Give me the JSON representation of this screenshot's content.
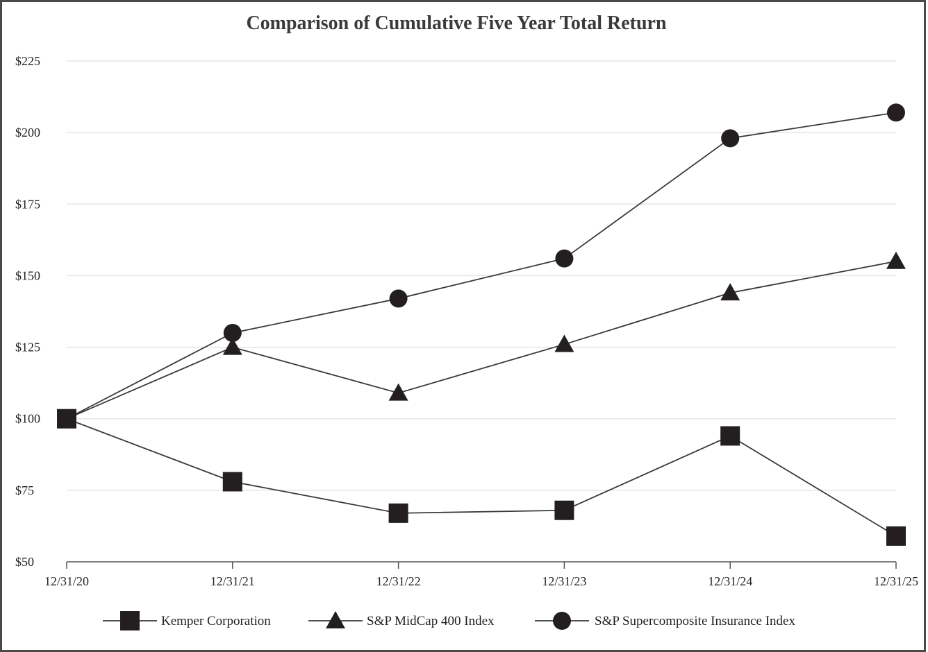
{
  "chart_data": {
    "type": "line",
    "title": "Comparison of Cumulative Five Year Total Return",
    "xlabel": "",
    "ylabel": "",
    "x": [
      "12/31/20",
      "12/31/21",
      "12/31/22",
      "12/31/23",
      "12/31/24",
      "12/31/25"
    ],
    "ylim": [
      50,
      225
    ],
    "yticks": [
      50,
      75,
      100,
      125,
      150,
      175,
      200,
      225
    ],
    "ytick_labels": [
      "$50",
      "$75",
      "$100",
      "$125",
      "$150",
      "$175",
      "$200",
      "$225"
    ],
    "grid": true,
    "legend_position": "bottom",
    "series": [
      {
        "name": "Kemper Corporation",
        "marker": "square",
        "values": [
          100,
          78,
          67,
          68,
          94,
          59
        ]
      },
      {
        "name": "S&P MidCap 400 Index",
        "marker": "triangle",
        "values": [
          100,
          125,
          109,
          126,
          144,
          155
        ]
      },
      {
        "name": "S&P Supercomposite Insurance Index",
        "marker": "circle",
        "values": [
          100,
          130,
          142,
          156,
          198,
          207
        ]
      }
    ],
    "colors": {
      "line": "#3a3a3a",
      "marker": "#231f20",
      "grid": "#e6e6e6",
      "axis": "#555555"
    }
  }
}
